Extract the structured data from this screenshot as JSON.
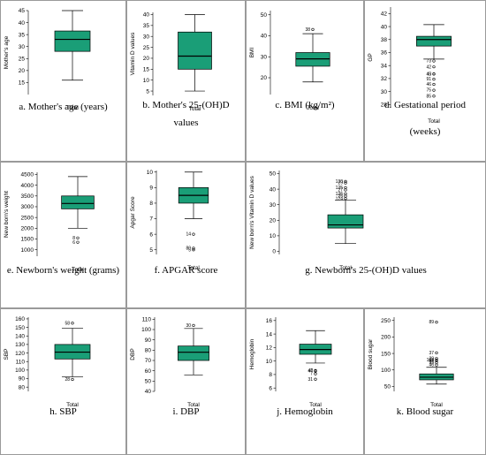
{
  "colors": {
    "box_fill": "#1a9e77",
    "border": "#9a9a9a",
    "line": "#000000"
  },
  "chart_data": [
    {
      "type": "box",
      "caption": [
        "a. Mother's age (years)"
      ],
      "ylabel": "Mother's age",
      "category": "Total",
      "ylim": [
        10,
        45
      ],
      "ticks": [
        15,
        20,
        25,
        30,
        35,
        40,
        45
      ],
      "whisker_low": 16,
      "q1": 28,
      "median": 33,
      "q3": 36.5,
      "whisker_high": 45,
      "outliers": []
    },
    {
      "type": "box",
      "caption": [
        "b. Mother's 25-(OH)D",
        "values"
      ],
      "ylabel": "Vitamin D values",
      "category": "Total",
      "ylim": [
        3,
        41
      ],
      "ticks": [
        5,
        10,
        15,
        20,
        25,
        30,
        35,
        40
      ],
      "whisker_low": 5,
      "q1": 15,
      "median": 21,
      "q3": 32,
      "whisker_high": 40,
      "outliers": []
    },
    {
      "type": "box",
      "caption": [
        "c. BMI (kg/m²)"
      ],
      "ylabel": "BMI",
      "category": "Total",
      "ylim": [
        12,
        52
      ],
      "ticks": [
        20,
        30,
        40,
        50
      ],
      "whisker_low": 18,
      "q1": 25.5,
      "median": 29,
      "q3": 32,
      "whisker_high": 41,
      "outliers": [
        {
          "value": 43,
          "label": "38"
        }
      ]
    },
    {
      "type": "box",
      "caption": [
        "d. Gestational period",
        "(weeks)"
      ],
      "ylabel": "GP",
      "category": "Total",
      "ylim": [
        27.5,
        43
      ],
      "ticks": [
        28,
        30,
        32,
        34,
        36,
        38,
        40,
        42
      ],
      "whisker_low": 35,
      "q1": 37,
      "median": 38,
      "q3": 38.5,
      "whisker_high": 40.3,
      "outliers": [
        {
          "value": 34.7,
          "label": "73"
        },
        {
          "value": 33.8,
          "label": "42"
        },
        {
          "value": 32.7,
          "label": "45"
        },
        {
          "value": 32.7,
          "label": "43"
        },
        {
          "value": 31.9,
          "label": "91"
        },
        {
          "value": 31.1,
          "label": "46"
        },
        {
          "value": 30.2,
          "label": "75"
        },
        {
          "value": 29.3,
          "label": "85"
        }
      ]
    },
    {
      "type": "box",
      "caption": [
        "e. Newborn's weight (grams)"
      ],
      "ylabel": "New born's weight",
      "category": "Total",
      "ylim": [
        700,
        4600
      ],
      "ticks": [
        1000,
        1500,
        2000,
        2500,
        3000,
        3500,
        4000,
        4500
      ],
      "whisker_low": 2000,
      "q1": 2900,
      "median": 3150,
      "q3": 3500,
      "whisker_high": 4400,
      "outliers": [
        {
          "value": 1550,
          "label": "8"
        },
        {
          "value": 1350,
          "label": "6"
        }
      ]
    },
    {
      "type": "box",
      "caption": [
        "f. APGAR score"
      ],
      "ylabel": "Apgar Score",
      "category": "Total",
      "ylim": [
        4.7,
        10.1
      ],
      "ticks": [
        5,
        6,
        7,
        8,
        9,
        10
      ],
      "whisker_low": 7,
      "q1": 8,
      "median": 8.5,
      "q3": 9,
      "whisker_high": 10,
      "outliers": [
        {
          "value": 6,
          "label": "14"
        },
        {
          "value": 5.1,
          "label": "80"
        },
        {
          "value": 5,
          "label": "5"
        }
      ]
    },
    {
      "type": "box",
      "caption": [
        "g. Newborn's 25-(OH)D values"
      ],
      "ylabel": "New born's Vitamin D values",
      "category": "Total",
      "ylim": [
        -2,
        52
      ],
      "ticks": [
        0,
        10,
        20,
        30,
        40,
        50
      ],
      "whisker_low": 5,
      "q1": 15,
      "median": 17,
      "q3": 23.5,
      "whisker_high": 33,
      "outliers": [
        {
          "value": 45,
          "label": "130"
        },
        {
          "value": 44,
          "label": "29"
        },
        {
          "value": 41,
          "label": "125"
        },
        {
          "value": 39.5,
          "label": "27"
        },
        {
          "value": 37,
          "label": "126"
        },
        {
          "value": 35.5,
          "label": "25"
        },
        {
          "value": 34,
          "label": "124"
        }
      ]
    },
    {
      "type": "box",
      "caption": [
        "h. SBP"
      ],
      "ylabel": "SBP",
      "category": "Total",
      "ylim": [
        75,
        162
      ],
      "ticks": [
        80,
        90,
        100,
        110,
        120,
        130,
        140,
        150,
        160
      ],
      "whisker_low": 92,
      "q1": 113,
      "median": 121,
      "q3": 130,
      "whisker_high": 149,
      "outliers": [
        {
          "value": 155,
          "label": "58"
        },
        {
          "value": 89,
          "label": "28"
        }
      ]
    },
    {
      "type": "box",
      "caption": [
        "i. DBP"
      ],
      "ylabel": "DBP",
      "category": "Total",
      "ylim": [
        40,
        112
      ],
      "ticks": [
        40,
        50,
        60,
        70,
        80,
        90,
        100,
        110
      ],
      "whisker_low": 56,
      "q1": 70,
      "median": 78,
      "q3": 84,
      "whisker_high": 101,
      "outliers": [
        {
          "value": 104,
          "label": "30"
        }
      ]
    },
    {
      "type": "box",
      "caption": [
        "j. Hemoglobin"
      ],
      "ylabel": "Hemoglobin",
      "category": "Total",
      "ylim": [
        5.5,
        16.5
      ],
      "ticks": [
        6,
        8,
        10,
        12,
        14,
        16
      ],
      "whisker_low": 9.7,
      "q1": 11,
      "median": 11.7,
      "q3": 12.5,
      "whisker_high": 14.5,
      "outliers": [
        {
          "value": 8.5,
          "label": "47"
        },
        {
          "value": 8.6,
          "label": "48"
        },
        {
          "value": 8.1,
          "label": "7"
        },
        {
          "value": 7.3,
          "label": "31"
        }
      ]
    },
    {
      "type": "box",
      "caption": [
        "k. Blood sugar"
      ],
      "ylabel": "Blood sugar",
      "category": "Total",
      "ylim": [
        35,
        260
      ],
      "ticks": [
        50,
        100,
        150,
        200,
        250
      ],
      "whisker_low": 57,
      "q1": 70,
      "median": 78,
      "q3": 88,
      "whisker_high": 108,
      "outliers": [
        {
          "value": 245,
          "label": "89"
        },
        {
          "value": 152,
          "label": "37"
        },
        {
          "value": 135,
          "label": "28"
        },
        {
          "value": 130,
          "label": "108"
        },
        {
          "value": 128,
          "label": "56"
        },
        {
          "value": 122,
          "label": "95"
        },
        {
          "value": 115,
          "label": "46"
        }
      ]
    }
  ]
}
